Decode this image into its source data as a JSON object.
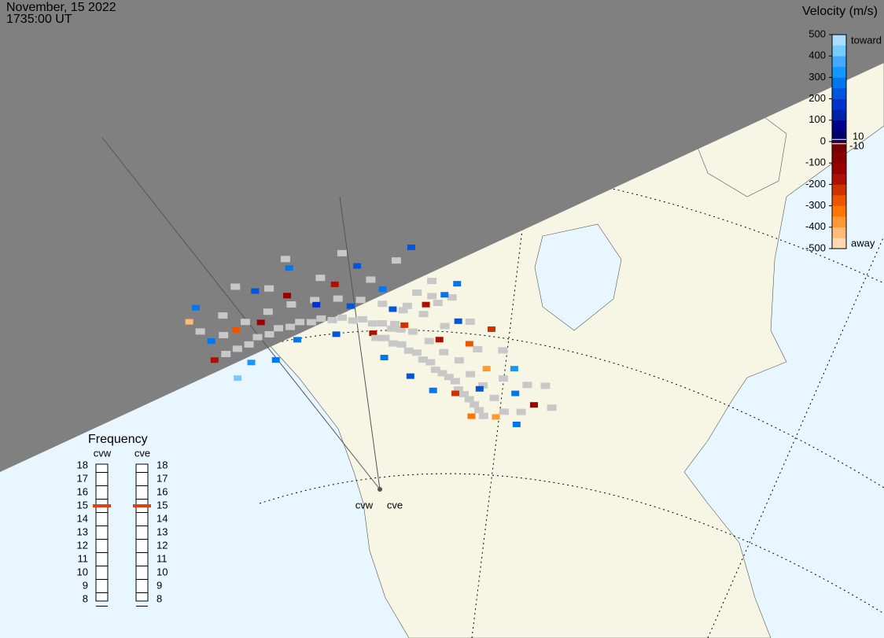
{
  "header": {
    "date": "November, 15 2022",
    "time": "1735:00 UT"
  },
  "colorbar": {
    "title": "Velocity (m/s)",
    "lim": [
      -500,
      500
    ],
    "ticks": [
      500,
      400,
      300,
      200,
      100,
      0,
      -100,
      -200,
      -300,
      -400,
      -500
    ],
    "inner_ticks": [
      10,
      -10
    ],
    "top_label": "toward",
    "bottom_label": "away",
    "colors": [
      "#ffd9b0",
      "#ffbb77",
      "#ff9933",
      "#ff7700",
      "#ee5500",
      "#cc3300",
      "#aa1100",
      "#990000",
      "#880000",
      "#770000",
      "#000066",
      "#000088",
      "#0022aa",
      "#0033cc",
      "#0055dd",
      "#0077ee",
      "#1199ff",
      "#44aaff",
      "#77ccff",
      "#aaddff"
    ]
  },
  "frequency": {
    "title": "Frequency",
    "lim": [
      8,
      18
    ],
    "ticks": [
      18,
      17,
      16,
      15,
      14,
      13,
      12,
      11,
      10,
      9,
      8
    ]
  },
  "radars": [
    {
      "name": "cvw",
      "frequency": 15,
      "ground_scatter": [
        [
          1,
          38
        ],
        [
          2,
          37
        ],
        [
          3,
          36
        ],
        [
          4,
          36
        ],
        [
          5,
          35
        ],
        [
          6,
          35
        ],
        [
          7,
          34
        ],
        [
          8,
          34
        ],
        [
          9,
          33
        ],
        [
          10,
          33
        ],
        [
          11,
          32
        ],
        [
          12,
          32
        ],
        [
          13,
          31
        ],
        [
          14,
          31
        ],
        [
          15,
          30
        ],
        [
          16,
          30
        ],
        [
          17,
          29
        ],
        [
          18,
          29
        ],
        [
          2,
          41
        ],
        [
          4,
          40
        ],
        [
          6,
          39
        ],
        [
          8,
          38
        ],
        [
          10,
          37
        ],
        [
          12,
          36
        ],
        [
          14,
          35
        ],
        [
          16,
          34
        ],
        [
          18,
          33
        ],
        [
          20,
          33
        ],
        [
          3,
          44
        ],
        [
          7,
          43
        ],
        [
          11,
          41
        ],
        [
          15,
          39
        ],
        [
          19,
          37
        ],
        [
          21,
          36
        ],
        [
          9,
          47
        ],
        [
          13,
          45
        ],
        [
          17,
          43
        ],
        [
          5,
          47
        ],
        [
          1,
          45
        ],
        [
          20,
          40
        ],
        [
          22,
          38
        ]
      ],
      "cells": [
        [
          0,
          39,
          -200
        ],
        [
          1,
          42,
          250
        ],
        [
          2,
          33,
          300
        ],
        [
          3,
          40,
          -300
        ],
        [
          4,
          30,
          250
        ],
        [
          5,
          38,
          -150
        ],
        [
          6,
          44,
          200
        ],
        [
          7,
          31,
          280
        ],
        [
          8,
          40,
          -120
        ],
        [
          9,
          45,
          260
        ],
        [
          10,
          36,
          180
        ],
        [
          11,
          29,
          240
        ],
        [
          12,
          39,
          -180
        ],
        [
          13,
          34,
          220
        ],
        [
          14,
          42,
          200
        ],
        [
          15,
          28,
          -200
        ],
        [
          16,
          37,
          260
        ],
        [
          17,
          33,
          230
        ],
        [
          18,
          46,
          200
        ],
        [
          20,
          35,
          -180
        ],
        [
          1,
          48,
          -450
        ],
        [
          2,
          49,
          260
        ],
        [
          22,
          41,
          270
        ],
        [
          0,
          33,
          420
        ]
      ]
    },
    {
      "name": "cve",
      "frequency": 15,
      "ground_scatter": [
        [
          2,
          27
        ],
        [
          3,
          27
        ],
        [
          4,
          26
        ],
        [
          5,
          26
        ],
        [
          6,
          25
        ],
        [
          7,
          25
        ],
        [
          8,
          24
        ],
        [
          9,
          24
        ],
        [
          10,
          23
        ],
        [
          11,
          23
        ],
        [
          12,
          23
        ],
        [
          13,
          23
        ],
        [
          14,
          22
        ],
        [
          15,
          22
        ],
        [
          16,
          22
        ],
        [
          17,
          22
        ],
        [
          18,
          22
        ],
        [
          19,
          22
        ],
        [
          4,
          30
        ],
        [
          6,
          29
        ],
        [
          8,
          28
        ],
        [
          10,
          27
        ],
        [
          12,
          27
        ],
        [
          14,
          26
        ],
        [
          16,
          26
        ],
        [
          18,
          26
        ],
        [
          20,
          26
        ],
        [
          5,
          34
        ],
        [
          9,
          32
        ],
        [
          13,
          31
        ],
        [
          17,
          30
        ],
        [
          21,
          29
        ],
        [
          7,
          37
        ],
        [
          11,
          35
        ],
        [
          15,
          34
        ],
        [
          19,
          33
        ],
        [
          20,
          36
        ],
        [
          22,
          35
        ]
      ],
      "cells": [
        [
          3,
          23,
          250
        ],
        [
          5,
          30,
          -250
        ],
        [
          7,
          20,
          230
        ],
        [
          9,
          29,
          -200
        ],
        [
          11,
          19,
          260
        ],
        [
          12,
          31,
          -300
        ],
        [
          14,
          21,
          -250
        ],
        [
          15,
          29,
          -400
        ],
        [
          16,
          25,
          230
        ],
        [
          17,
          33,
          300
        ],
        [
          18,
          20,
          -350
        ],
        [
          19,
          30,
          250
        ],
        [
          20,
          24,
          -380
        ],
        [
          21,
          32,
          -150
        ],
        [
          22,
          27,
          280
        ],
        [
          13,
          36,
          -220
        ],
        [
          10,
          34,
          200
        ],
        [
          8,
          38,
          250
        ]
      ]
    }
  ]
}
